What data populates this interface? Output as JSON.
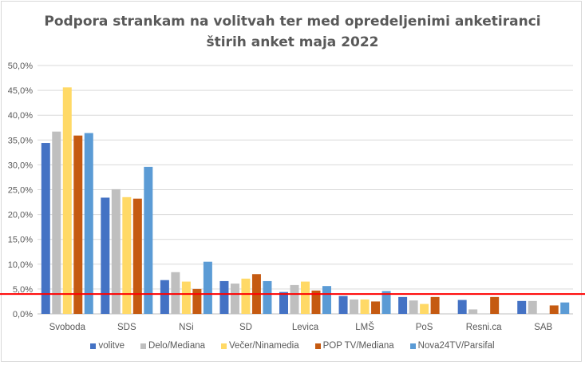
{
  "chart_data": {
    "type": "bar",
    "title_line1": "Podpora strankam na volitvah ter med opredeljenimi anketiranci",
    "title_line2": "štirih anket maja 2022",
    "xlabel": "",
    "ylabel": "",
    "ylim": [
      0,
      50
    ],
    "grid": true,
    "legend_position": "bottom",
    "yticks": [
      "0,0%",
      "5,0%",
      "10,0%",
      "15,0%",
      "20,0%",
      "25,0%",
      "30,0%",
      "35,0%",
      "40,0%",
      "45,0%",
      "50,0%"
    ],
    "ytick_values": [
      0,
      5,
      10,
      15,
      20,
      25,
      30,
      35,
      40,
      45,
      50
    ],
    "categories": [
      "Svoboda",
      "SDS",
      "NSi",
      "SD",
      "Levica",
      "LMŠ",
      "PoS",
      "Resni.ca",
      "SAB"
    ],
    "series": [
      {
        "name": "volitve",
        "color": "#4472C4",
        "values": [
          34.4,
          23.4,
          6.8,
          6.6,
          4.4,
          3.6,
          3.4,
          2.8,
          2.6
        ]
      },
      {
        "name": "Delo/Mediana",
        "color": "#BFBFBF",
        "values": [
          36.7,
          25.1,
          8.4,
          6.1,
          5.8,
          2.9,
          2.7,
          0.9,
          2.6
        ]
      },
      {
        "name": "Večer/Ninamedia",
        "color": "#FFD966",
        "values": [
          45.6,
          23.5,
          6.5,
          7.1,
          6.5,
          2.9,
          2.0,
          null,
          null
        ]
      },
      {
        "name": "POP TV/Mediana",
        "color": "#C55A11",
        "values": [
          35.9,
          23.2,
          5.0,
          8.0,
          4.7,
          2.5,
          3.4,
          3.4,
          1.7
        ]
      },
      {
        "name": "Nova24TV/Parsifal",
        "color": "#5B9BD5",
        "values": [
          36.4,
          29.6,
          10.5,
          6.6,
          5.6,
          4.6,
          null,
          null,
          2.3
        ]
      }
    ],
    "threshold": {
      "value": 4.0,
      "color": "#FF0000"
    }
  }
}
